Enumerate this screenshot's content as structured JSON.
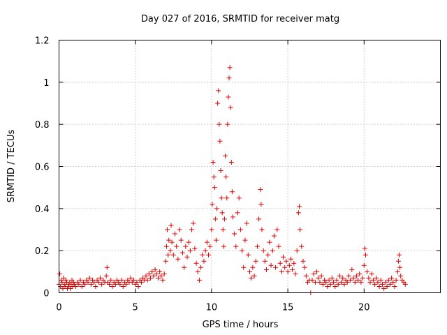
{
  "chart_data": {
    "type": "scatter",
    "title": "Day 027 of 2016, SRMTID for receiver matg",
    "xlabel": "GPS time / hours",
    "ylabel": "SRMTID / TECUs",
    "xlim": [
      0,
      25
    ],
    "ylim": [
      0,
      1.2
    ],
    "xticks": [
      0,
      5,
      10,
      15,
      20
    ],
    "xtick_labels": [
      "0",
      "5",
      "10",
      "15",
      "20"
    ],
    "yticks": [
      0,
      0.2,
      0.4,
      0.6,
      0.8,
      1.0,
      1.2
    ],
    "ytick_labels": [
      "0",
      "0.2",
      "0.4",
      "0.6",
      "0.8",
      "1",
      "1.2"
    ],
    "grid": true,
    "marker": "plus",
    "color": "#e00000",
    "series": [
      {
        "name": "SRMTID",
        "points": [
          [
            0.0,
            0.04
          ],
          [
            0.05,
            0.09
          ],
          [
            0.1,
            0.03
          ],
          [
            0.15,
            0.06
          ],
          [
            0.2,
            0.05
          ],
          [
            0.25,
            0.02
          ],
          [
            0.3,
            0.07
          ],
          [
            0.35,
            0.04
          ],
          [
            0.4,
            0.03
          ],
          [
            0.45,
            0.06
          ],
          [
            0.5,
            0.05
          ],
          [
            0.55,
            0.02
          ],
          [
            0.6,
            0.04
          ],
          [
            0.65,
            0.03
          ],
          [
            0.7,
            0.05
          ],
          [
            0.75,
            0.02
          ],
          [
            0.8,
            0.04
          ],
          [
            0.85,
            0.06
          ],
          [
            0.9,
            0.03
          ],
          [
            0.95,
            0.05
          ],
          [
            1.0,
            0.04
          ],
          [
            1.1,
            0.03
          ],
          [
            1.2,
            0.05
          ],
          [
            1.3,
            0.04
          ],
          [
            1.4,
            0.06
          ],
          [
            1.5,
            0.03
          ],
          [
            1.6,
            0.05
          ],
          [
            1.7,
            0.04
          ],
          [
            1.8,
            0.06
          ],
          [
            1.9,
            0.05
          ],
          [
            2.0,
            0.07
          ],
          [
            2.1,
            0.04
          ],
          [
            2.2,
            0.06
          ],
          [
            2.3,
            0.05
          ],
          [
            2.4,
            0.03
          ],
          [
            2.5,
            0.06
          ],
          [
            2.6,
            0.05
          ],
          [
            2.7,
            0.07
          ],
          [
            2.8,
            0.04
          ],
          [
            2.9,
            0.06
          ],
          [
            3.0,
            0.05
          ],
          [
            3.1,
            0.08
          ],
          [
            3.15,
            0.12
          ],
          [
            3.2,
            0.05
          ],
          [
            3.3,
            0.04
          ],
          [
            3.4,
            0.06
          ],
          [
            3.5,
            0.03
          ],
          [
            3.6,
            0.05
          ],
          [
            3.7,
            0.04
          ],
          [
            3.8,
            0.06
          ],
          [
            3.9,
            0.05
          ],
          [
            4.0,
            0.04
          ],
          [
            4.1,
            0.06
          ],
          [
            4.2,
            0.03
          ],
          [
            4.3,
            0.05
          ],
          [
            4.4,
            0.04
          ],
          [
            4.5,
            0.06
          ],
          [
            4.6,
            0.05
          ],
          [
            4.7,
            0.07
          ],
          [
            4.8,
            0.05
          ],
          [
            4.9,
            0.06
          ],
          [
            5.0,
            0.04
          ],
          [
            5.1,
            0.05
          ],
          [
            5.2,
            0.03
          ],
          [
            5.3,
            0.06
          ],
          [
            5.4,
            0.05
          ],
          [
            5.5,
            0.07
          ],
          [
            5.6,
            0.06
          ],
          [
            5.7,
            0.08
          ],
          [
            5.8,
            0.06
          ],
          [
            5.9,
            0.09
          ],
          [
            6.0,
            0.07
          ],
          [
            6.1,
            0.1
          ],
          [
            6.2,
            0.08
          ],
          [
            6.3,
            0.11
          ],
          [
            6.4,
            0.09
          ],
          [
            6.5,
            0.07
          ],
          [
            6.6,
            0.1
          ],
          [
            6.7,
            0.08
          ],
          [
            6.8,
            0.06
          ],
          [
            6.9,
            0.09
          ],
          [
            7.0,
            0.15
          ],
          [
            7.05,
            0.22
          ],
          [
            7.1,
            0.3
          ],
          [
            7.15,
            0.18
          ],
          [
            7.2,
            0.25
          ],
          [
            7.3,
            0.2
          ],
          [
            7.35,
            0.32
          ],
          [
            7.4,
            0.24
          ],
          [
            7.5,
            0.18
          ],
          [
            7.6,
            0.28
          ],
          [
            7.7,
            0.22
          ],
          [
            7.8,
            0.16
          ],
          [
            7.9,
            0.3
          ],
          [
            8.0,
            0.25
          ],
          [
            8.1,
            0.19
          ],
          [
            8.2,
            0.12
          ],
          [
            8.3,
            0.22
          ],
          [
            8.4,
            0.17
          ],
          [
            8.5,
            0.24
          ],
          [
            8.6,
            0.2
          ],
          [
            8.7,
            0.3
          ],
          [
            8.8,
            0.33
          ],
          [
            8.9,
            0.21
          ],
          [
            9.0,
            0.14
          ],
          [
            9.1,
            0.1
          ],
          [
            9.2,
            0.06
          ],
          [
            9.3,
            0.12
          ],
          [
            9.4,
            0.18
          ],
          [
            9.5,
            0.15
          ],
          [
            9.6,
            0.2
          ],
          [
            9.7,
            0.24
          ],
          [
            9.8,
            0.18
          ],
          [
            9.9,
            0.22
          ],
          [
            10.0,
            0.3
          ],
          [
            10.05,
            0.42
          ],
          [
            10.1,
            0.62
          ],
          [
            10.15,
            0.55
          ],
          [
            10.2,
            0.5
          ],
          [
            10.25,
            0.35
          ],
          [
            10.3,
            0.25
          ],
          [
            10.35,
            0.4
          ],
          [
            10.4,
            0.9
          ],
          [
            10.45,
            0.96
          ],
          [
            10.5,
            0.8
          ],
          [
            10.55,
            0.72
          ],
          [
            10.6,
            0.58
          ],
          [
            10.65,
            0.45
          ],
          [
            10.7,
            0.38
          ],
          [
            10.75,
            0.3
          ],
          [
            10.8,
            0.22
          ],
          [
            10.85,
            0.35
          ],
          [
            10.9,
            0.65
          ],
          [
            10.95,
            0.55
          ],
          [
            11.0,
            0.45
          ],
          [
            11.05,
            0.8
          ],
          [
            11.1,
            0.93
          ],
          [
            11.15,
            1.02
          ],
          [
            11.2,
            1.07
          ],
          [
            11.25,
            0.88
          ],
          [
            11.3,
            0.62
          ],
          [
            11.35,
            0.48
          ],
          [
            11.4,
            0.36
          ],
          [
            11.5,
            0.28
          ],
          [
            11.6,
            0.22
          ],
          [
            11.7,
            0.38
          ],
          [
            11.8,
            0.45
          ],
          [
            11.9,
            0.3
          ],
          [
            12.0,
            0.2
          ],
          [
            12.1,
            0.12
          ],
          [
            12.2,
            0.25
          ],
          [
            12.3,
            0.33
          ],
          [
            12.4,
            0.18
          ],
          [
            12.5,
            0.1
          ],
          [
            12.6,
            0.07
          ],
          [
            12.7,
            0.12
          ],
          [
            12.8,
            0.08
          ],
          [
            12.9,
            0.15
          ],
          [
            13.0,
            0.22
          ],
          [
            13.1,
            0.35
          ],
          [
            13.2,
            0.49
          ],
          [
            13.25,
            0.42
          ],
          [
            13.3,
            0.3
          ],
          [
            13.4,
            0.2
          ],
          [
            13.5,
            0.15
          ],
          [
            13.6,
            0.11
          ],
          [
            13.7,
            0.18
          ],
          [
            13.8,
            0.24
          ],
          [
            13.9,
            0.13
          ],
          [
            14.0,
            0.2
          ],
          [
            14.1,
            0.27
          ],
          [
            14.2,
            0.12
          ],
          [
            14.3,
            0.3
          ],
          [
            14.4,
            0.22
          ],
          [
            14.5,
            0.14
          ],
          [
            14.6,
            0.1
          ],
          [
            14.7,
            0.17
          ],
          [
            14.8,
            0.12
          ],
          [
            14.9,
            0.15
          ],
          [
            15.0,
            0.1
          ],
          [
            15.1,
            0.13
          ],
          [
            15.2,
            0.16
          ],
          [
            15.3,
            0.11
          ],
          [
            15.4,
            0.14
          ],
          [
            15.5,
            0.09
          ],
          [
            15.6,
            0.2
          ],
          [
            15.7,
            0.38
          ],
          [
            15.75,
            0.41
          ],
          [
            15.8,
            0.3
          ],
          [
            15.9,
            0.22
          ],
          [
            16.0,
            0.15
          ],
          [
            16.1,
            0.12
          ],
          [
            16.2,
            0.08
          ],
          [
            16.3,
            0.05
          ],
          [
            16.4,
            0.06
          ],
          [
            16.5,
            0.0
          ],
          [
            16.6,
            0.06
          ],
          [
            16.7,
            0.09
          ],
          [
            16.8,
            0.05
          ],
          [
            16.9,
            0.1
          ],
          [
            17.0,
            0.07
          ],
          [
            17.1,
            0.05
          ],
          [
            17.2,
            0.08
          ],
          [
            17.3,
            0.04
          ],
          [
            17.4,
            0.06
          ],
          [
            17.5,
            0.05
          ],
          [
            17.6,
            0.03
          ],
          [
            17.7,
            0.06
          ],
          [
            17.8,
            0.04
          ],
          [
            17.9,
            0.07
          ],
          [
            18.0,
            0.05
          ],
          [
            18.1,
            0.03
          ],
          [
            18.2,
            0.06
          ],
          [
            18.3,
            0.04
          ],
          [
            18.4,
            0.08
          ],
          [
            18.5,
            0.05
          ],
          [
            18.6,
            0.07
          ],
          [
            18.7,
            0.04
          ],
          [
            18.8,
            0.06
          ],
          [
            18.9,
            0.05
          ],
          [
            19.0,
            0.08
          ],
          [
            19.1,
            0.06
          ],
          [
            19.2,
            0.11
          ],
          [
            19.3,
            0.07
          ],
          [
            19.4,
            0.05
          ],
          [
            19.5,
            0.08
          ],
          [
            19.6,
            0.06
          ],
          [
            19.7,
            0.09
          ],
          [
            19.8,
            0.05
          ],
          [
            19.9,
            0.07
          ],
          [
            20.0,
            0.13
          ],
          [
            20.05,
            0.21
          ],
          [
            20.1,
            0.18
          ],
          [
            20.2,
            0.1
          ],
          [
            20.3,
            0.07
          ],
          [
            20.4,
            0.05
          ],
          [
            20.5,
            0.09
          ],
          [
            20.6,
            0.06
          ],
          [
            20.7,
            0.04
          ],
          [
            20.8,
            0.07
          ],
          [
            20.9,
            0.05
          ],
          [
            21.0,
            0.03
          ],
          [
            21.1,
            0.06
          ],
          [
            21.2,
            0.04
          ],
          [
            21.3,
            0.02
          ],
          [
            21.4,
            0.05
          ],
          [
            21.5,
            0.03
          ],
          [
            21.6,
            0.06
          ],
          [
            21.7,
            0.04
          ],
          [
            21.8,
            0.07
          ],
          [
            21.9,
            0.05
          ],
          [
            22.0,
            0.03
          ],
          [
            22.1,
            0.06
          ],
          [
            22.2,
            0.1
          ],
          [
            22.25,
            0.15
          ],
          [
            22.3,
            0.18
          ],
          [
            22.35,
            0.12
          ],
          [
            22.4,
            0.08
          ],
          [
            22.5,
            0.06
          ],
          [
            22.6,
            0.05
          ],
          [
            22.7,
            0.04
          ]
        ]
      }
    ]
  }
}
